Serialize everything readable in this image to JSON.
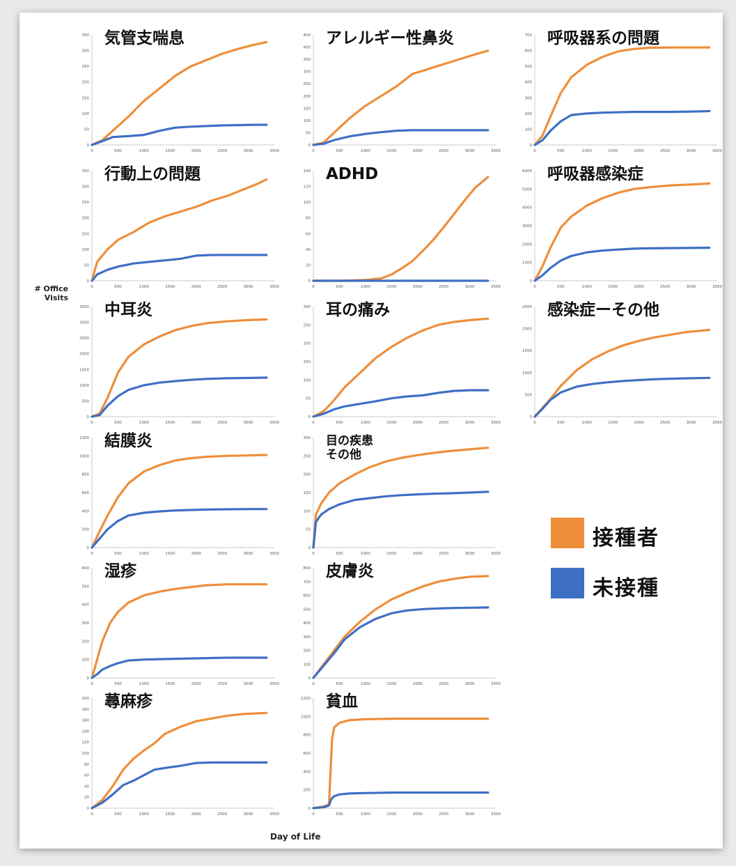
{
  "figure": {
    "ylabel": "# Office\nVisits",
    "xlabel": "Day of Life",
    "colors": {
      "vaccinated": "#EE8E3A",
      "unvaccinated": "#3F6FC4"
    }
  },
  "legend": [
    {
      "label": "接種者",
      "color": "#EE8E3A"
    },
    {
      "label": "未接種",
      "color": "#3F6FC4"
    }
  ],
  "chart_data": [
    {
      "type": "line",
      "title": "気管支喘息",
      "x": [
        0,
        200,
        400,
        700,
        1000,
        1300,
        1600,
        1900,
        2200,
        2500,
        2800,
        3100,
        3350
      ],
      "ylim": [
        0,
        350
      ],
      "yticks": [
        0,
        50,
        100,
        150,
        200,
        250,
        300,
        350
      ],
      "xticks": [
        0,
        500,
        1000,
        1500,
        2000,
        2500,
        3000,
        3500
      ],
      "series": [
        {
          "name": "接種者",
          "values": [
            0,
            15,
            45,
            90,
            140,
            180,
            220,
            250,
            270,
            290,
            305,
            318,
            327
          ]
        },
        {
          "name": "未接種",
          "values": [
            0,
            12,
            25,
            28,
            32,
            45,
            55,
            58,
            60,
            62,
            63,
            64,
            64
          ]
        }
      ]
    },
    {
      "type": "line",
      "title": "アレルギー性鼻炎",
      "x": [
        0,
        200,
        400,
        700,
        1000,
        1300,
        1600,
        1900,
        2200,
        2500,
        2800,
        3100,
        3350
      ],
      "ylim": [
        0,
        450
      ],
      "yticks": [
        0,
        50,
        100,
        150,
        200,
        250,
        300,
        350,
        400,
        450
      ],
      "xticks": [
        0,
        500,
        1000,
        1500,
        2000,
        2500,
        3000,
        3500
      ],
      "series": [
        {
          "name": "接種者",
          "values": [
            0,
            10,
            50,
            110,
            160,
            200,
            240,
            290,
            310,
            330,
            350,
            370,
            385
          ]
        },
        {
          "name": "未接種",
          "values": [
            0,
            5,
            20,
            35,
            45,
            52,
            58,
            60,
            60,
            60,
            60,
            60,
            60
          ]
        }
      ]
    },
    {
      "type": "line",
      "title": "呼吸器系の問題",
      "x": [
        0,
        150,
        300,
        500,
        700,
        1000,
        1300,
        1600,
        1900,
        2200,
        2600,
        3000,
        3350
      ],
      "ylim": [
        0,
        700
      ],
      "yticks": [
        0,
        100,
        200,
        300,
        400,
        500,
        600,
        700
      ],
      "xticks": [
        0,
        500,
        1000,
        1500,
        2000,
        2500,
        3000,
        3500
      ],
      "series": [
        {
          "name": "接種者",
          "values": [
            0,
            60,
            180,
            330,
            430,
            510,
            560,
            595,
            610,
            618,
            620,
            620,
            620
          ]
        },
        {
          "name": "未接種",
          "values": [
            0,
            30,
            90,
            150,
            190,
            200,
            205,
            208,
            210,
            210,
            210,
            212,
            215
          ]
        }
      ]
    },
    {
      "type": "line",
      "title": "行動上の問題",
      "x": [
        0,
        100,
        300,
        500,
        800,
        1100,
        1400,
        1700,
        2000,
        2300,
        2600,
        2900,
        3200,
        3350
      ],
      "ylim": [
        0,
        350
      ],
      "yticks": [
        0,
        50,
        100,
        150,
        200,
        250,
        300,
        350
      ],
      "xticks": [
        0,
        500,
        1000,
        1500,
        2000,
        2500,
        3000,
        3500
      ],
      "series": [
        {
          "name": "接種者",
          "values": [
            0,
            60,
            100,
            130,
            155,
            185,
            205,
            220,
            235,
            255,
            270,
            290,
            310,
            322
          ]
        },
        {
          "name": "未接種",
          "values": [
            0,
            20,
            35,
            45,
            55,
            60,
            65,
            70,
            80,
            82,
            82,
            82,
            82,
            82
          ]
        }
      ]
    },
    {
      "type": "line",
      "title": "ADHD",
      "x": [
        0,
        500,
        1000,
        1300,
        1500,
        1700,
        1900,
        2100,
        2300,
        2500,
        2700,
        2900,
        3100,
        3350
      ],
      "ylim": [
        0,
        140
      ],
      "yticks": [
        0,
        20,
        40,
        60,
        80,
        100,
        120,
        140
      ],
      "xticks": [
        0,
        500,
        1000,
        1500,
        2000,
        2500,
        3000,
        3500
      ],
      "series": [
        {
          "name": "接種者",
          "values": [
            0,
            0,
            1,
            3,
            8,
            16,
            25,
            38,
            52,
            68,
            85,
            102,
            118,
            132
          ]
        },
        {
          "name": "未接種",
          "values": [
            0,
            0,
            0,
            0,
            0,
            0,
            0,
            0,
            0,
            0,
            0,
            0,
            0,
            0
          ]
        }
      ]
    },
    {
      "type": "line",
      "title": "呼吸器感染症",
      "x": [
        0,
        150,
        300,
        500,
        700,
        1000,
        1300,
        1600,
        1900,
        2200,
        2600,
        3000,
        3350
      ],
      "ylim": [
        0,
        6000
      ],
      "yticks": [
        0,
        1000,
        2000,
        3000,
        4000,
        5000,
        6000
      ],
      "xticks": [
        0,
        500,
        1000,
        1500,
        2000,
        2500,
        3000,
        3500
      ],
      "series": [
        {
          "name": "接種者",
          "values": [
            0,
            800,
            1800,
            2900,
            3500,
            4100,
            4500,
            4800,
            5000,
            5100,
            5200,
            5250,
            5300
          ]
        },
        {
          "name": "未接種",
          "values": [
            0,
            300,
            700,
            1100,
            1350,
            1550,
            1650,
            1700,
            1750,
            1770,
            1780,
            1790,
            1800
          ]
        }
      ]
    },
    {
      "type": "line",
      "title": "中耳炎",
      "x": [
        0,
        150,
        300,
        500,
        700,
        1000,
        1300,
        1600,
        1900,
        2200,
        2600,
        3000,
        3350
      ],
      "ylim": [
        0,
        3500
      ],
      "yticks": [
        0,
        500,
        1000,
        1500,
        2000,
        2500,
        3000,
        3500
      ],
      "xticks": [
        0,
        500,
        1000,
        1500,
        2000,
        2500,
        3000,
        3500
      ],
      "series": [
        {
          "name": "接種者",
          "values": [
            0,
            100,
            600,
            1400,
            1900,
            2300,
            2550,
            2750,
            2880,
            2970,
            3030,
            3070,
            3090
          ]
        },
        {
          "name": "未接種",
          "values": [
            0,
            50,
            350,
            650,
            850,
            1000,
            1080,
            1130,
            1170,
            1200,
            1220,
            1230,
            1240
          ]
        }
      ]
    },
    {
      "type": "line",
      "title": "耳の痛み",
      "x": [
        0,
        200,
        400,
        600,
        900,
        1200,
        1500,
        1800,
        2100,
        2400,
        2700,
        3000,
        3350
      ],
      "ylim": [
        0,
        300
      ],
      "yticks": [
        0,
        50,
        100,
        150,
        200,
        250,
        300
      ],
      "xticks": [
        0,
        500,
        1000,
        1500,
        2000,
        2500,
        3000,
        3500
      ],
      "series": [
        {
          "name": "接種者",
          "values": [
            0,
            15,
            45,
            80,
            120,
            160,
            190,
            215,
            235,
            250,
            258,
            263,
            267
          ]
        },
        {
          "name": "未接種",
          "values": [
            0,
            8,
            20,
            28,
            35,
            42,
            50,
            55,
            58,
            65,
            70,
            72,
            72
          ]
        }
      ]
    },
    {
      "type": "line",
      "title": "感染症ーその他",
      "x": [
        0,
        150,
        300,
        500,
        800,
        1100,
        1400,
        1700,
        2000,
        2300,
        2600,
        2900,
        3350
      ],
      "ylim": [
        0,
        2500
      ],
      "yticks": [
        0,
        500,
        1000,
        1500,
        2000,
        2500
      ],
      "xticks": [
        0,
        500,
        1000,
        1500,
        2000,
        2500,
        3000,
        3500
      ],
      "series": [
        {
          "name": "接種者",
          "values": [
            0,
            200,
            400,
            700,
            1050,
            1300,
            1480,
            1620,
            1720,
            1800,
            1860,
            1920,
            1970
          ]
        },
        {
          "name": "未接種",
          "values": [
            0,
            180,
            380,
            550,
            680,
            740,
            780,
            810,
            830,
            850,
            860,
            870,
            880
          ]
        }
      ]
    },
    {
      "type": "line",
      "title": "結膜炎",
      "x": [
        0,
        150,
        300,
        500,
        700,
        1000,
        1300,
        1600,
        1900,
        2200,
        2600,
        3000,
        3350
      ],
      "ylim": [
        0,
        1200
      ],
      "yticks": [
        0,
        200,
        400,
        600,
        800,
        1000,
        1200
      ],
      "xticks": [
        0,
        500,
        1000,
        1500,
        2000,
        2500,
        3000,
        3500
      ],
      "series": [
        {
          "name": "接種者",
          "values": [
            0,
            180,
            350,
            550,
            700,
            830,
            900,
            950,
            975,
            990,
            1000,
            1005,
            1010
          ]
        },
        {
          "name": "未接種",
          "values": [
            0,
            100,
            200,
            290,
            350,
            380,
            395,
            405,
            410,
            415,
            418,
            420,
            420
          ]
        }
      ]
    },
    {
      "type": "line",
      "title": "目の疾患\nその他",
      "x": [
        0,
        50,
        150,
        300,
        500,
        800,
        1100,
        1400,
        1700,
        2000,
        2300,
        2600,
        3000,
        3350
      ],
      "ylim": [
        0,
        300
      ],
      "yticks": [
        0,
        50,
        100,
        150,
        200,
        250,
        300
      ],
      "xticks": [
        0,
        500,
        1000,
        1500,
        2000,
        2500,
        3000,
        3500
      ],
      "series": [
        {
          "name": "接種者",
          "values": [
            0,
            90,
            120,
            150,
            175,
            200,
            220,
            235,
            245,
            252,
            258,
            263,
            268,
            272
          ]
        },
        {
          "name": "未接種",
          "values": [
            0,
            70,
            90,
            105,
            118,
            130,
            135,
            140,
            143,
            145,
            147,
            148,
            150,
            152
          ]
        }
      ]
    },
    {
      "type": "line",
      "title": "湿疹",
      "x": [
        0,
        100,
        200,
        350,
        500,
        700,
        1000,
        1300,
        1600,
        1900,
        2200,
        2600,
        3000,
        3350
      ],
      "ylim": [
        0,
        600
      ],
      "yticks": [
        0,
        100,
        200,
        300,
        400,
        500,
        600
      ],
      "xticks": [
        0,
        500,
        1000,
        1500,
        2000,
        2500,
        3000,
        3500
      ],
      "series": [
        {
          "name": "接種者",
          "values": [
            0,
            100,
            200,
            300,
            360,
            410,
            450,
            470,
            485,
            495,
            505,
            510,
            510,
            510
          ]
        },
        {
          "name": "未接種",
          "values": [
            0,
            20,
            45,
            65,
            80,
            95,
            100,
            102,
            104,
            106,
            108,
            110,
            110,
            110
          ]
        }
      ]
    },
    {
      "type": "line",
      "title": "皮膚炎",
      "x": [
        0,
        200,
        400,
        600,
        900,
        1200,
        1500,
        1800,
        2100,
        2400,
        2700,
        3000,
        3350
      ],
      "ylim": [
        0,
        800
      ],
      "yticks": [
        0,
        100,
        200,
        300,
        400,
        500,
        600,
        700,
        800
      ],
      "xticks": [
        0,
        500,
        1000,
        1500,
        2000,
        2500,
        3000,
        3500
      ],
      "series": [
        {
          "name": "接種者",
          "values": [
            0,
            100,
            200,
            300,
            410,
            500,
            570,
            620,
            665,
            700,
            720,
            735,
            740
          ]
        },
        {
          "name": "未接種",
          "values": [
            0,
            90,
            180,
            280,
            370,
            430,
            470,
            490,
            500,
            505,
            508,
            510,
            512
          ]
        }
      ]
    },
    {
      "type": "line",
      "title": "蕁麻疹",
      "x": [
        0,
        200,
        400,
        600,
        800,
        1000,
        1200,
        1400,
        1700,
        2000,
        2300,
        2600,
        2900,
        3350
      ],
      "ylim": [
        0,
        200
      ],
      "yticks": [
        0,
        20,
        40,
        60,
        80,
        100,
        120,
        140,
        160,
        180,
        200
      ],
      "xticks": [
        0,
        500,
        1000,
        1500,
        2000,
        2500,
        3000,
        3500
      ],
      "series": [
        {
          "name": "接種者",
          "values": [
            0,
            15,
            40,
            70,
            90,
            105,
            118,
            135,
            148,
            158,
            163,
            168,
            171,
            173
          ]
        },
        {
          "name": "未接種",
          "values": [
            0,
            10,
            25,
            42,
            50,
            60,
            70,
            73,
            77,
            82,
            83,
            83,
            83,
            83
          ]
        }
      ]
    },
    {
      "type": "line",
      "title": "貧血",
      "x": [
        0,
        200,
        300,
        330,
        360,
        400,
        500,
        700,
        1000,
        1500,
        2000,
        2500,
        3000,
        3350
      ],
      "ylim": [
        0,
        1200
      ],
      "yticks": [
        0,
        200,
        400,
        600,
        800,
        1000,
        1200
      ],
      "xticks": [
        0,
        500,
        1000,
        1500,
        2000,
        2500,
        3000,
        3500
      ],
      "series": [
        {
          "name": "接種者",
          "values": [
            0,
            20,
            40,
            400,
            750,
            880,
            930,
            960,
            970,
            975,
            975,
            975,
            975,
            975
          ]
        },
        {
          "name": "未接種",
          "values": [
            0,
            10,
            30,
            80,
            110,
            130,
            150,
            160,
            165,
            170,
            170,
            170,
            170,
            170
          ]
        }
      ]
    }
  ]
}
